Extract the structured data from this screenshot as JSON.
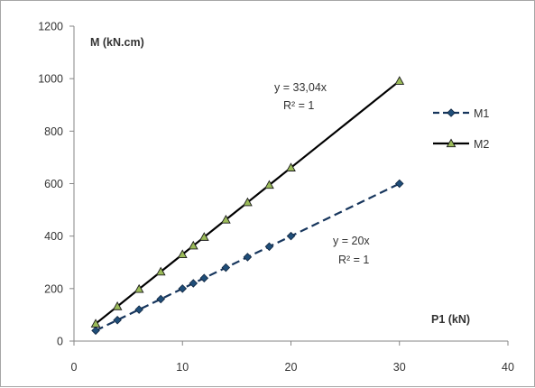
{
  "chart_data": {
    "type": "scatter",
    "ylabel": "M (kN.cm)",
    "xlabel": "P1 (kN)",
    "xlim": [
      0,
      40
    ],
    "ylim": [
      0,
      1200
    ],
    "x_ticks": [
      0,
      10,
      20,
      30,
      40
    ],
    "y_ticks": [
      0,
      200,
      400,
      600,
      800,
      1000,
      1200
    ],
    "grid": false,
    "legend_position": "right",
    "series": [
      {
        "name": "M1",
        "color": "#17365d",
        "marker": "diamond",
        "line_style": "dashed",
        "x": [
          2,
          4,
          6,
          8,
          10,
          11,
          12,
          14,
          16,
          18,
          20,
          30
        ],
        "y": [
          40,
          80,
          120,
          160,
          200,
          220,
          240,
          280,
          320,
          360,
          400,
          600
        ],
        "trendline": {
          "slope": 20,
          "equation": "y = 20x",
          "r2": "R² = 1"
        }
      },
      {
        "name": "M2",
        "color": "#000000",
        "marker": "triangle",
        "line_style": "solid",
        "x": [
          2,
          4,
          6,
          8,
          10,
          11,
          12,
          14,
          16,
          18,
          20,
          30
        ],
        "y": [
          66.08,
          132.16,
          198.24,
          264.32,
          330.4,
          363.44,
          396.48,
          462.56,
          528.64,
          594.72,
          660.8,
          991.2
        ],
        "trendline": {
          "slope": 33.04,
          "equation": "y = 33,04x",
          "r2": "R² = 1"
        }
      }
    ]
  }
}
